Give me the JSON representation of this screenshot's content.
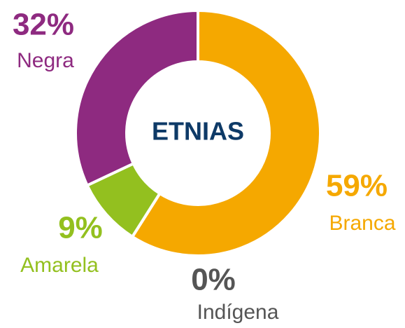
{
  "chart_data": {
    "type": "donut",
    "center_label": "ETNIAS",
    "categories": [
      "Branca",
      "Indígena",
      "Amarela",
      "Negra"
    ],
    "values": [
      59,
      0,
      9,
      32
    ],
    "value_labels": [
      "59%",
      "0%",
      "9%",
      "32%"
    ],
    "colors": [
      "#f5a800",
      "#555555",
      "#93c01f",
      "#8e2a80"
    ]
  }
}
